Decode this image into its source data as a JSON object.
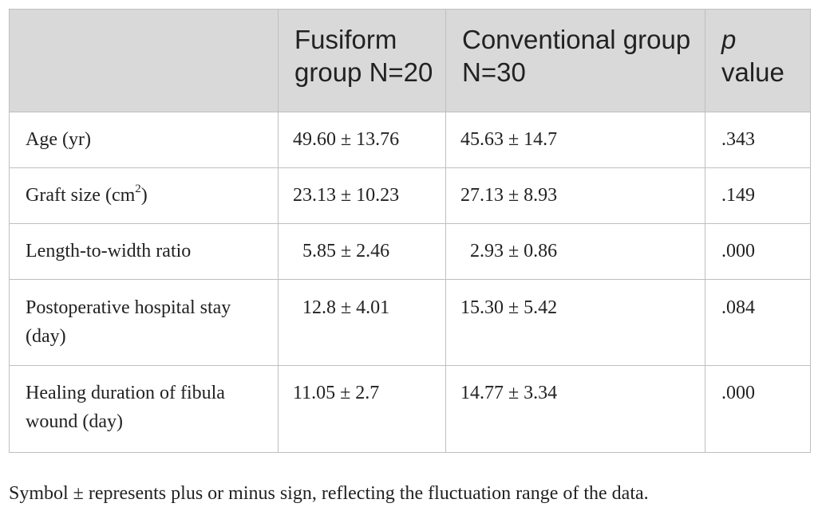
{
  "table": {
    "headers": {
      "col0": "",
      "col1": "Fusiform group N=20",
      "col2": "Conventional group N=30",
      "col3_italic": "p",
      "col3_rest": "value"
    },
    "rows": [
      {
        "label": "Age (yr)",
        "label_sup": "",
        "label_suffix": "",
        "fusiform": "49.60 ± 13.76",
        "conventional": "45.63 ± 14.7",
        "p": ".343"
      },
      {
        "label": "Graft size (cm",
        "label_sup": "2",
        "label_suffix": ")",
        "fusiform": "23.13 ± 10.23",
        "conventional": "27.13 ± 8.93",
        "p": ".149"
      },
      {
        "label": "Length-to-width ratio",
        "label_sup": "",
        "label_suffix": "",
        "fusiform": "5.85 ± 2.46",
        "conventional": "2.93 ± 0.86",
        "p": ".000"
      },
      {
        "label": "Postoperative hospital stay (day)",
        "label_sup": "",
        "label_suffix": "",
        "fusiform": "12.8 ± 4.01",
        "conventional": "15.30 ± 5.42",
        "p": ".084"
      },
      {
        "label": "Healing duration of fibula wound (day)",
        "label_sup": "",
        "label_suffix": "",
        "fusiform": "11.05 ± 2.7",
        "conventional": "14.77 ± 3.34",
        "p": ".000"
      }
    ]
  },
  "footnote": "Symbol ± represents plus or minus sign, reflecting the fluctuation range of the data."
}
